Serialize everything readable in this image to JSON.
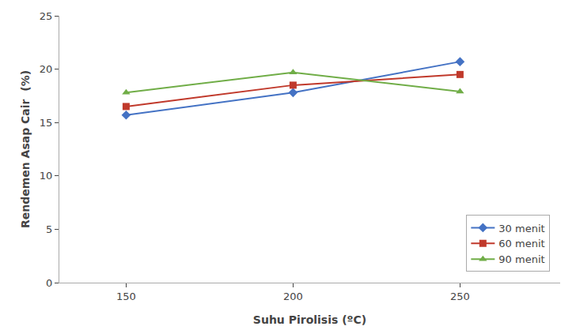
{
  "chart_data": {
    "type": "line",
    "xlabel": "Suhu Pirolisis (ºC)",
    "ylabel": "Rendemen Asap Cair  (%)",
    "x": [
      150,
      200,
      250
    ],
    "series": [
      {
        "name": "30 menit",
        "values": [
          15.7,
          17.8,
          20.7
        ],
        "color": "#4472C4",
        "marker": "diamond"
      },
      {
        "name": "60 menit",
        "values": [
          16.5,
          18.5,
          19.5
        ],
        "color": "#C0392B",
        "marker": "square"
      },
      {
        "name": "90 menit",
        "values": [
          17.8,
          19.7,
          17.9
        ],
        "color": "#70AD47",
        "marker": "triangle"
      }
    ],
    "xlim": [
      130,
      280
    ],
    "xticks": [
      150,
      200,
      250
    ],
    "ylim": [
      0,
      25
    ],
    "yticks": [
      0,
      5,
      10,
      15,
      20,
      25
    ],
    "grid": false,
    "legend": "lower right"
  }
}
